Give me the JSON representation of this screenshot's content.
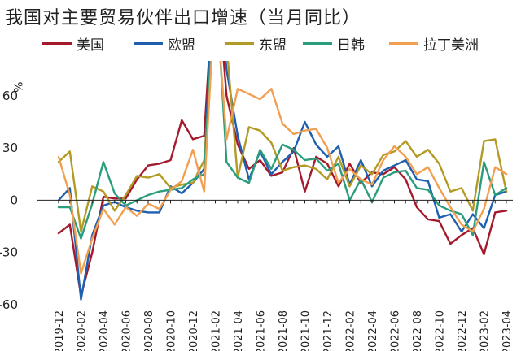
{
  "chart_data": {
    "type": "line",
    "title": "我国对主要贸易伙伴出口增速（当月同比）",
    "ylabel": "%",
    "xlabel": "",
    "ylim": [
      -60,
      80
    ],
    "yticks": [
      60,
      30,
      0,
      -30,
      -60
    ],
    "grid": false,
    "legend_position": "top",
    "x": [
      "2019-12",
      "2020-01",
      "2020-02",
      "2020-03",
      "2020-04",
      "2020-05",
      "2020-06",
      "2020-07",
      "2020-08",
      "2020-09",
      "2020-10",
      "2020-11",
      "2020-12",
      "2021-01",
      "2021-02",
      "2021-03",
      "2021-04",
      "2021-05",
      "2021-06",
      "2021-07",
      "2021-08",
      "2021-09",
      "2021-10",
      "2021-11",
      "2021-12",
      "2022-01",
      "2022-02",
      "2022-03",
      "2022-04",
      "2022-05",
      "2022-06",
      "2022-07",
      "2022-08",
      "2022-09",
      "2022-10",
      "2022-11",
      "2022-12",
      "2023-01",
      "2023-02",
      "2023-03",
      "2023-04"
    ],
    "x_tick_labels": [
      "2019-12",
      "2020-02",
      "2020-04",
      "2020-06",
      "2020-08",
      "2020-10",
      "2020-12",
      "2021-02",
      "2021-04",
      "2021-06",
      "2021-08",
      "2021-10",
      "2021-12",
      "2022-02",
      "2022-04",
      "2022-06",
      "2022-08",
      "2022-10",
      "2022-12",
      "2023-02",
      "2023-04"
    ],
    "series": [
      {
        "name": "美国",
        "color": "#a5192d",
        "values": [
          -19,
          -14,
          -55,
          -30,
          2,
          1,
          1,
          12,
          20,
          21,
          23,
          46,
          35,
          37,
          140,
          60,
          32,
          18,
          23,
          14,
          16,
          30,
          5,
          25,
          21,
          8,
          21,
          10,
          16,
          15,
          19,
          12,
          -4,
          -11,
          -12,
          -25,
          -20,
          -16,
          -31,
          -7,
          -6
        ]
      },
      {
        "name": "欧盟",
        "color": "#1f5fb0",
        "values": [
          0,
          7,
          -57,
          -20,
          -3,
          -1,
          -4,
          -6,
          -7,
          -7,
          8,
          4,
          10,
          18,
          150,
          75,
          37,
          12,
          28,
          15,
          22,
          28,
          45,
          32,
          25,
          31,
          9,
          23,
          8,
          17,
          20,
          23,
          12,
          11,
          -10,
          -8,
          -18,
          -8,
          -16,
          3,
          5
        ]
      },
      {
        "name": "东盟",
        "color": "#b39a25",
        "values": [
          22,
          28,
          -18,
          8,
          5,
          -6,
          3,
          14,
          13,
          15,
          7,
          9,
          10,
          23,
          110,
          90,
          13,
          42,
          40,
          33,
          17,
          19,
          20,
          18,
          12,
          25,
          8,
          20,
          15,
          26,
          28,
          34,
          25,
          29,
          21,
          5,
          7,
          -6,
          34,
          35,
          5
        ]
      },
      {
        "name": "日韩",
        "color": "#2a9d7c",
        "values": [
          -4,
          -4,
          -22,
          -2,
          22,
          4,
          -3,
          0,
          3,
          5,
          6,
          7,
          12,
          15,
          130,
          22,
          13,
          10,
          29,
          18,
          32,
          29,
          23,
          24,
          17,
          21,
          0,
          12,
          -1,
          13,
          16,
          17,
          7,
          6,
          -3,
          -6,
          -8,
          -20,
          22,
          3,
          7
        ]
      },
      {
        "name": "拉丁美洲",
        "color": "#f0a050",
        "values": [
          25,
          3,
          -42,
          -22,
          -5,
          -14,
          -4,
          -9,
          -2,
          -5,
          6,
          11,
          29,
          5,
          120,
          35,
          64,
          61,
          58,
          64,
          44,
          38,
          40,
          41,
          30,
          10,
          18,
          12,
          9,
          23,
          31,
          25,
          15,
          19,
          7,
          -4,
          -14,
          -18,
          -5,
          19,
          15
        ]
      }
    ]
  }
}
